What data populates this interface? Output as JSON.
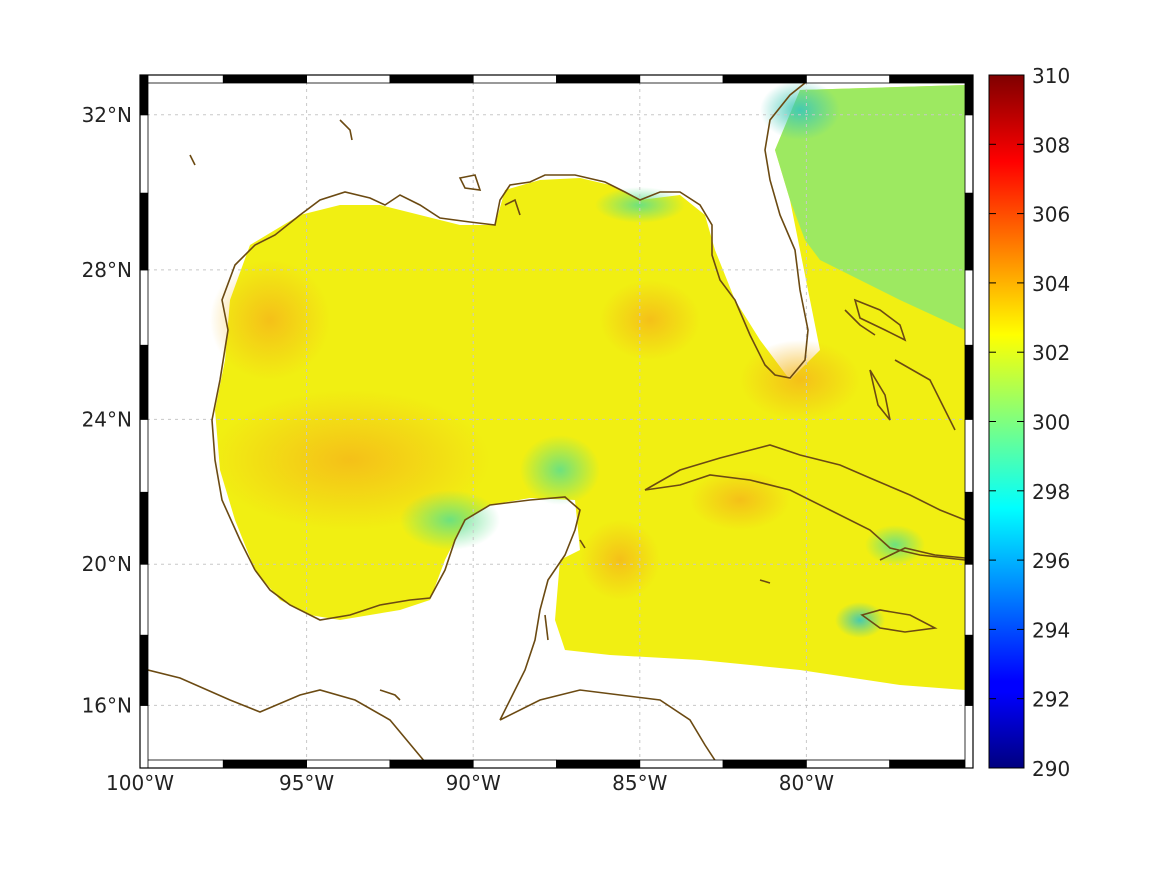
{
  "map": {
    "projection": "mercator",
    "lon_range": [
      -100,
      -75
    ],
    "lat_range": [
      14.2,
      33
    ],
    "grid": true,
    "lon_ticks": [
      {
        "value": -100,
        "label": "100°W"
      },
      {
        "value": -95,
        "label": "95°W"
      },
      {
        "value": -90,
        "label": "90°W"
      },
      {
        "value": -85,
        "label": "85°W"
      },
      {
        "value": -80,
        "label": "80°W"
      }
    ],
    "lat_ticks": [
      {
        "value": 32,
        "label": "32°N"
      },
      {
        "value": 28,
        "label": "28°N"
      },
      {
        "value": 24,
        "label": "24°N"
      },
      {
        "value": 20,
        "label": "20°N"
      },
      {
        "value": 16,
        "label": "16°N"
      }
    ],
    "coast_color": "#6b4a12",
    "field_dominant_color": "#f2ef10"
  },
  "colorbar": {
    "colormap": "jet",
    "range": [
      290,
      310
    ],
    "ticks": [
      "310",
      "308",
      "306",
      "304",
      "302",
      "300",
      "298",
      "296",
      "294",
      "292",
      "290"
    ]
  }
}
